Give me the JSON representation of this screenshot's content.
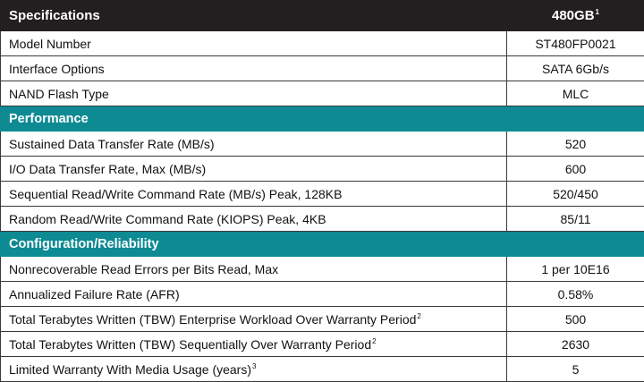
{
  "header": {
    "title": "Specifications",
    "capacity": "480GB",
    "capacity_note": "1"
  },
  "rows": [
    {
      "label": "Model Number",
      "value": "ST480FP0021"
    },
    {
      "label": "Interface Options",
      "value": "SATA 6Gb/s"
    },
    {
      "label": "NAND Flash Type",
      "value": "MLC"
    }
  ],
  "performance": {
    "title": "Performance",
    "rows": [
      {
        "label": "Sustained Data Transfer Rate (MB/s)",
        "value": "520"
      },
      {
        "label": "I/O Data Transfer Rate, Max (MB/s)",
        "value": "600"
      },
      {
        "label": "Sequential Read/Write Command Rate (MB/s) Peak, 128KB",
        "value": "520/450"
      },
      {
        "label": "Random Read/Write Command Rate (KIOPS) Peak, 4KB",
        "value": "85/11"
      }
    ]
  },
  "reliability": {
    "title": "Configuration/Reliability",
    "rows": [
      {
        "label": "Nonrecoverable Read Errors per Bits Read, Max",
        "note": "",
        "value": "1 per 10E16"
      },
      {
        "label": "Annualized Failure Rate (AFR)",
        "note": "",
        "value": "0.58%"
      },
      {
        "label": "Total Terabytes Written (TBW) Enterprise Workload Over Warranty Period",
        "note": "2",
        "value": "500"
      },
      {
        "label": "Total Terabytes Written (TBW) Sequentially Over Warranty Period",
        "note": "2",
        "value": "2630"
      },
      {
        "label": "Limited Warranty With Media Usage (years)",
        "note": "3",
        "value": "5"
      }
    ]
  }
}
